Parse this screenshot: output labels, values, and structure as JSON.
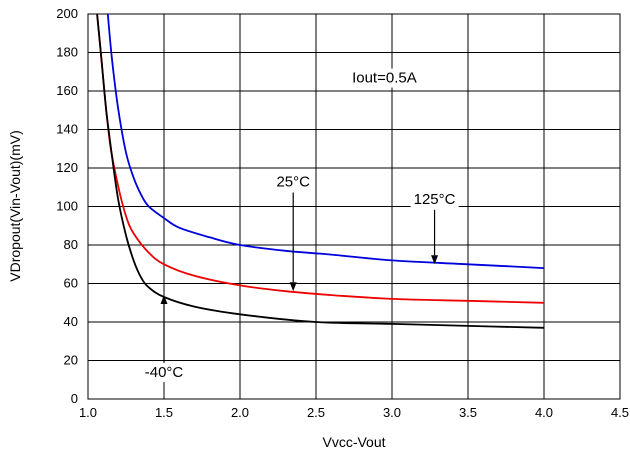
{
  "chart_data": {
    "type": "line",
    "xlabel": "Vvcc-Vout",
    "ylabel": "VDropout(Vin-Vout)(mV)",
    "xlim": [
      1.0,
      4.5
    ],
    "ylim": [
      0,
      200
    ],
    "x_ticks": [
      "1.0",
      "1.5",
      "2.0",
      "2.5",
      "3.0",
      "3.5",
      "4.0",
      "4.5"
    ],
    "y_ticks": [
      "0",
      "20",
      "40",
      "60",
      "80",
      "100",
      "120",
      "140",
      "160",
      "180",
      "200"
    ],
    "grid": true,
    "series": [
      {
        "name": "125°C",
        "color": "#0000dd",
        "points": [
          [
            1.13,
            200
          ],
          [
            1.16,
            175
          ],
          [
            1.2,
            150
          ],
          [
            1.25,
            128
          ],
          [
            1.3,
            115
          ],
          [
            1.35,
            106
          ],
          [
            1.4,
            100
          ],
          [
            1.5,
            94
          ],
          [
            1.6,
            89
          ],
          [
            1.8,
            84
          ],
          [
            2.0,
            80
          ],
          [
            2.3,
            77
          ],
          [
            2.6,
            75
          ],
          [
            3.0,
            72
          ],
          [
            3.5,
            70
          ],
          [
            4.0,
            68
          ]
        ]
      },
      {
        "name": "25°C",
        "color": "#ee0000",
        "points": [
          [
            1.06,
            200
          ],
          [
            1.09,
            175
          ],
          [
            1.12,
            150
          ],
          [
            1.15,
            130
          ],
          [
            1.2,
            110
          ],
          [
            1.25,
            95
          ],
          [
            1.3,
            86
          ],
          [
            1.4,
            76
          ],
          [
            1.5,
            70
          ],
          [
            1.7,
            64
          ],
          [
            2.0,
            59
          ],
          [
            2.3,
            56
          ],
          [
            2.6,
            54
          ],
          [
            3.0,
            52
          ],
          [
            3.5,
            51
          ],
          [
            4.0,
            50
          ]
        ]
      },
      {
        "name": "-40°C",
        "color": "#000000",
        "points": [
          [
            1.06,
            200
          ],
          [
            1.09,
            175
          ],
          [
            1.12,
            150
          ],
          [
            1.16,
            125
          ],
          [
            1.2,
            103
          ],
          [
            1.25,
            85
          ],
          [
            1.3,
            72
          ],
          [
            1.35,
            63
          ],
          [
            1.4,
            58
          ],
          [
            1.5,
            53
          ],
          [
            1.7,
            48
          ],
          [
            2.0,
            44
          ],
          [
            2.5,
            40
          ],
          [
            3.0,
            39
          ],
          [
            3.5,
            38
          ],
          [
            4.0,
            37
          ]
        ]
      }
    ],
    "annotations": [
      {
        "label": "Iout=0.5A",
        "x": 2.95,
        "y": 167
      },
      {
        "label": "25°C",
        "x": 2.35,
        "y": 113,
        "arrow_to": [
          2.35,
          56
        ]
      },
      {
        "label": "125°C",
        "x": 3.28,
        "y": 104,
        "arrow_to": [
          3.28,
          70
        ]
      },
      {
        "label": "-40°C",
        "x": 1.5,
        "y": 14,
        "arrow_to": [
          1.5,
          54
        ]
      }
    ]
  }
}
